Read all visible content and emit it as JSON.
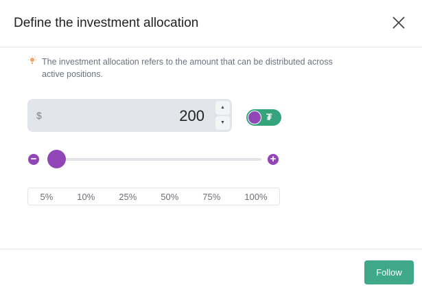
{
  "dialog": {
    "title": "Define the investment allocation",
    "hint": "The investment allocation refers to the amount that can be distributed across active positions.",
    "currency_symbol": "$",
    "amount": "200",
    "step_up": "▲",
    "step_down": "▼",
    "token_toggle": {
      "on": true,
      "symbol": "₮"
    },
    "slider": {
      "value_percent": 5
    },
    "presets": [
      "5%",
      "10%",
      "25%",
      "50%",
      "75%",
      "100%"
    ],
    "follow_label": "Follow"
  },
  "colors": {
    "accent": "#9146b8",
    "green": "#3fa98a",
    "hint_icon": "#f4a261"
  }
}
